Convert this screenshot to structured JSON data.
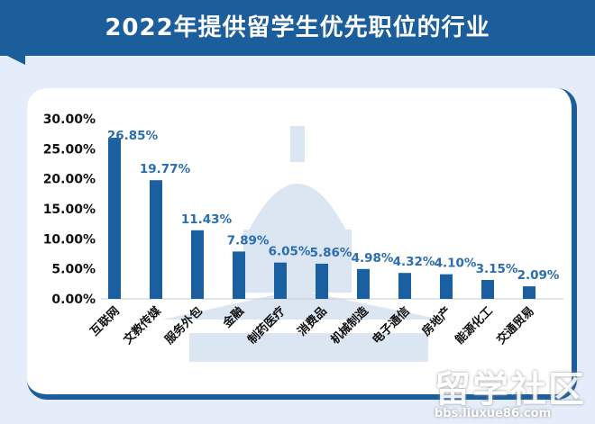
{
  "title": "2022年提供留学生优先职位的行业",
  "watermark": {
    "logo": "留学社区",
    "url": "bbs.liuxue86.com"
  },
  "colors": {
    "bar": "#1a5fa0",
    "label": "#2a6db0",
    "banner": "#1c5d9c",
    "background": "#e4edf9"
  },
  "chart_data": {
    "type": "bar",
    "title": "2022年提供留学生优先职位的行业",
    "categories": [
      "互联网",
      "文教传媒",
      "服务外包",
      "金融",
      "制药医疗",
      "消费品",
      "机械制造",
      "电子通信",
      "房地产",
      "能源化工",
      "交通贸易"
    ],
    "values": [
      26.85,
      19.77,
      11.43,
      7.89,
      6.05,
      5.86,
      4.98,
      4.32,
      4.1,
      3.15,
      2.09
    ],
    "value_labels": [
      "26.85%",
      "19.77%",
      "11.43%",
      "7.89%",
      "6.05%",
      "5.86%",
      "4.98%",
      "4.32%",
      "4.10%",
      "3.15%",
      "2.09%"
    ],
    "yticks": [
      "0.00%",
      "5.00%",
      "10.00%",
      "15.00%",
      "20.00%",
      "25.00%",
      "30.00%"
    ],
    "ylim": [
      0,
      30
    ],
    "grid": false,
    "legend": "none"
  }
}
